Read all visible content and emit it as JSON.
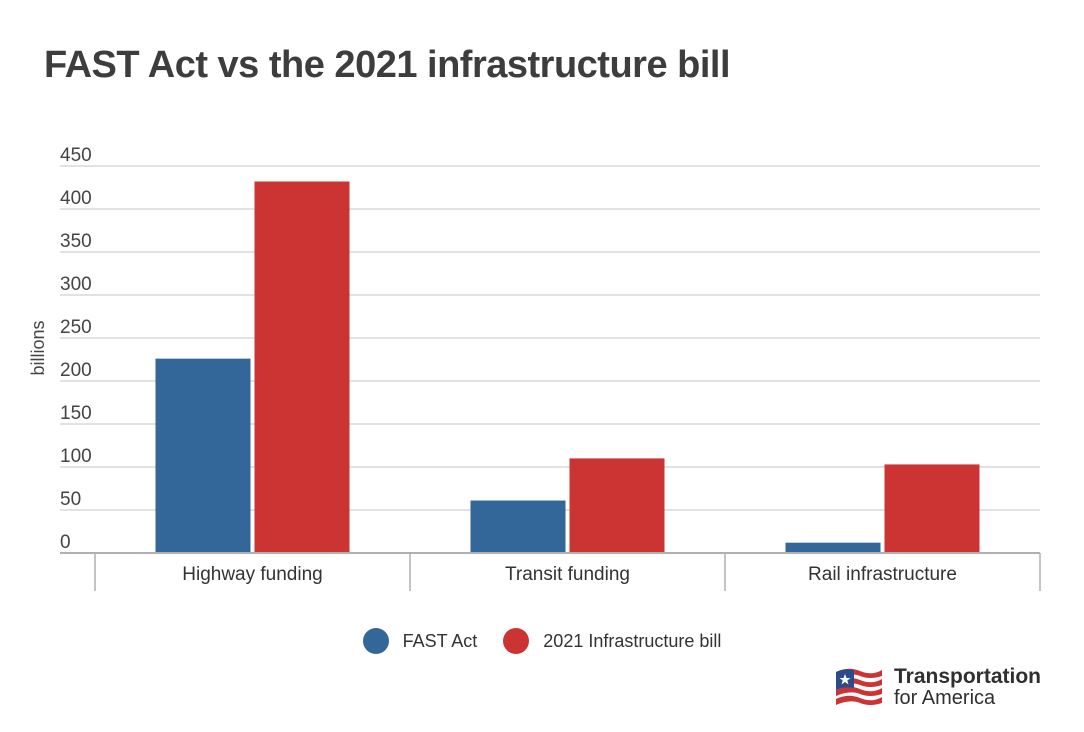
{
  "title": "FAST Act vs the 2021 infrastructure bill",
  "chart_data": {
    "type": "bar",
    "title": "FAST Act vs the 2021 infrastructure bill",
    "categories": [
      "Highway funding",
      "Transit funding",
      "Rail infrastructure"
    ],
    "series": [
      {
        "name": "FAST Act",
        "values": [
          226,
          61,
          12
        ],
        "color": "#336699"
      },
      {
        "name": "2021 Infrastructure bill",
        "values": [
          432,
          110,
          103
        ],
        "color": "#cc3333"
      }
    ],
    "xlabel": "",
    "ylabel": "billions",
    "ylim": [
      0,
      450
    ],
    "yticks": [
      "0",
      "50",
      "100",
      "150",
      "200",
      "250",
      "300",
      "350",
      "400",
      "450"
    ],
    "grid": true,
    "legend_position": "bottom-center"
  },
  "legend": {
    "items": [
      {
        "label": "FAST Act",
        "color": "#336699"
      },
      {
        "label": "2021 Infrastructure bill",
        "color": "#cc3333"
      }
    ]
  },
  "logo": {
    "line1": "Transportation",
    "line2": "for America",
    "icon": "american-flag-icon",
    "colors": {
      "blue": "#2b4c8c",
      "red": "#cc3333"
    }
  }
}
